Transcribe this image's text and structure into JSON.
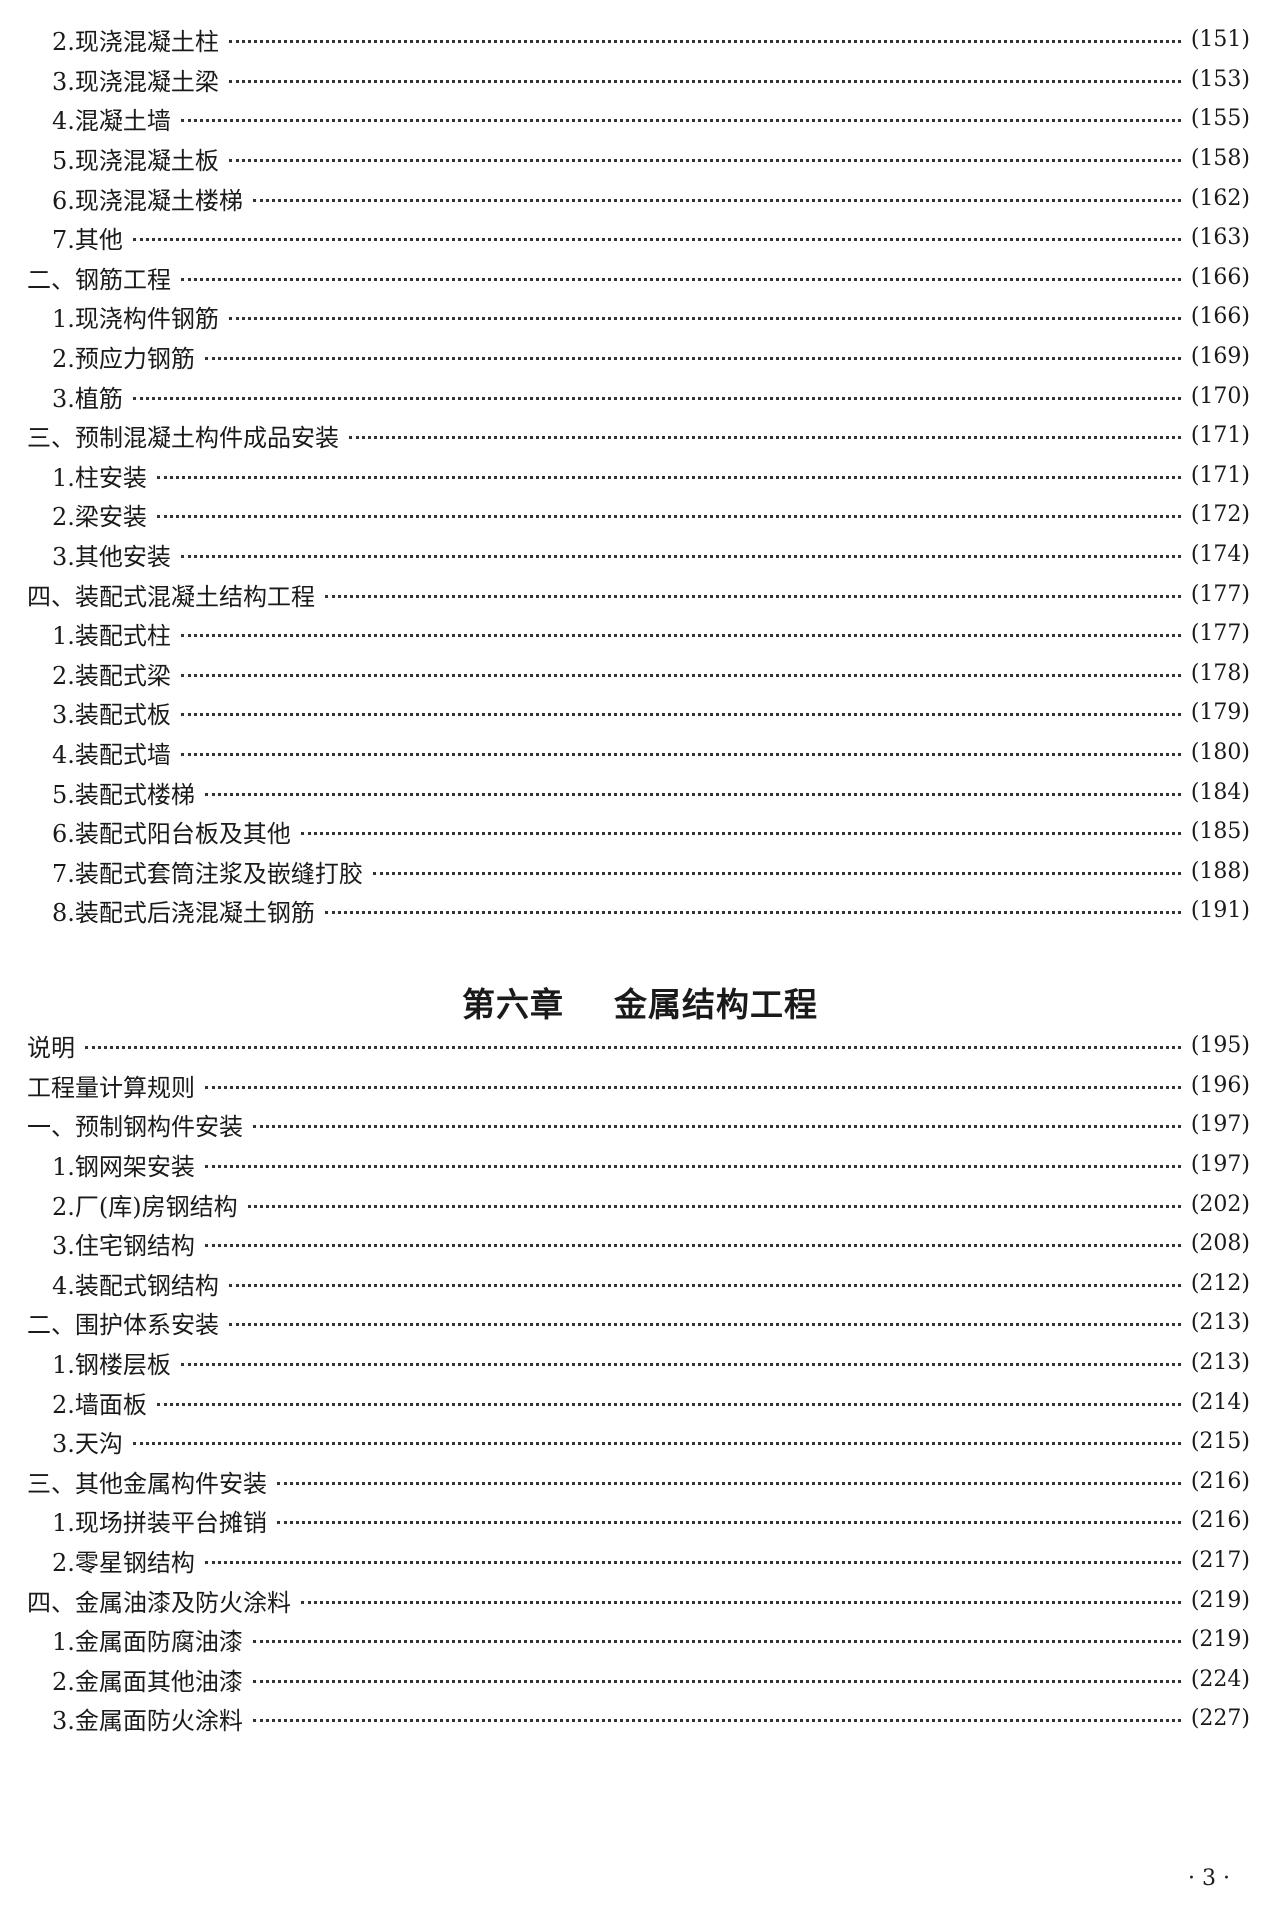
{
  "section1": [
    {
      "level": "item",
      "label": "2.现浇混凝土柱",
      "page": "(151)"
    },
    {
      "level": "item",
      "label": "3.现浇混凝土梁",
      "page": "(153)"
    },
    {
      "level": "item",
      "label": "4.混凝土墙",
      "page": "(155)"
    },
    {
      "level": "item",
      "label": "5.现浇混凝土板",
      "page": "(158)"
    },
    {
      "level": "item",
      "label": "6.现浇混凝土楼梯",
      "page": "(162)"
    },
    {
      "level": "item",
      "label": "7.其他",
      "page": "(163)"
    },
    {
      "level": "sec",
      "label": "二、钢筋工程",
      "page": "(166)"
    },
    {
      "level": "item",
      "label": "1.现浇构件钢筋",
      "page": "(166)"
    },
    {
      "level": "item",
      "label": "2.预应力钢筋",
      "page": "(169)"
    },
    {
      "level": "item",
      "label": "3.植筋",
      "page": "(170)"
    },
    {
      "level": "sec",
      "label": "三、预制混凝土构件成品安装",
      "page": "(171)"
    },
    {
      "level": "item",
      "label": "1.柱安装",
      "page": "(171)"
    },
    {
      "level": "item",
      "label": "2.梁安装",
      "page": "(172)"
    },
    {
      "level": "item",
      "label": "3.其他安装",
      "page": "(174)"
    },
    {
      "level": "sec",
      "label": "四、装配式混凝土结构工程",
      "page": "(177)"
    },
    {
      "level": "item",
      "label": "1.装配式柱",
      "page": "(177)"
    },
    {
      "level": "item",
      "label": "2.装配式梁",
      "page": "(178)"
    },
    {
      "level": "item",
      "label": "3.装配式板",
      "page": "(179)"
    },
    {
      "level": "item",
      "label": "4.装配式墙",
      "page": "(180)"
    },
    {
      "level": "item",
      "label": "5.装配式楼梯",
      "page": "(184)"
    },
    {
      "level": "item",
      "label": "6.装配式阳台板及其他",
      "page": "(185)"
    },
    {
      "level": "item",
      "label": "7.装配式套筒注浆及嵌缝打胶",
      "page": "(188)"
    },
    {
      "level": "item",
      "label": "8.装配式后浇混凝土钢筋",
      "page": "(191)"
    }
  ],
  "chapter_title": {
    "number": "第六章",
    "name": "金属结构工程"
  },
  "section2": [
    {
      "level": "sec",
      "label": "说明",
      "page": "(195)"
    },
    {
      "level": "sec",
      "label": "工程量计算规则",
      "page": "(196)"
    },
    {
      "level": "sec",
      "label": "一、预制钢构件安装",
      "page": "(197)"
    },
    {
      "level": "item",
      "label": "1.钢网架安装",
      "page": "(197)"
    },
    {
      "level": "item",
      "label": "2.厂(库)房钢结构",
      "page": "(202)"
    },
    {
      "level": "item",
      "label": "3.住宅钢结构",
      "page": "(208)"
    },
    {
      "level": "item",
      "label": "4.装配式钢结构",
      "page": "(212)"
    },
    {
      "level": "sec",
      "label": "二、围护体系安装",
      "page": "(213)"
    },
    {
      "level": "item",
      "label": "1.钢楼层板",
      "page": "(213)"
    },
    {
      "level": "item",
      "label": "2.墙面板",
      "page": "(214)"
    },
    {
      "level": "item",
      "label": "3.天沟",
      "page": "(215)"
    },
    {
      "level": "sec",
      "label": "三、其他金属构件安装",
      "page": "(216)"
    },
    {
      "level": "item",
      "label": "1.现场拼装平台摊销",
      "page": "(216)"
    },
    {
      "level": "item",
      "label": "2.零星钢结构",
      "page": "(217)"
    },
    {
      "level": "sec",
      "label": "四、金属油漆及防火涂料",
      "page": "(219)"
    },
    {
      "level": "item",
      "label": "1.金属面防腐油漆",
      "page": "(219)"
    },
    {
      "level": "item",
      "label": "2.金属面其他油漆",
      "page": "(224)"
    },
    {
      "level": "item",
      "label": "3.金属面防火涂料",
      "page": "(227)"
    }
  ],
  "page_number": "· 3 ·"
}
